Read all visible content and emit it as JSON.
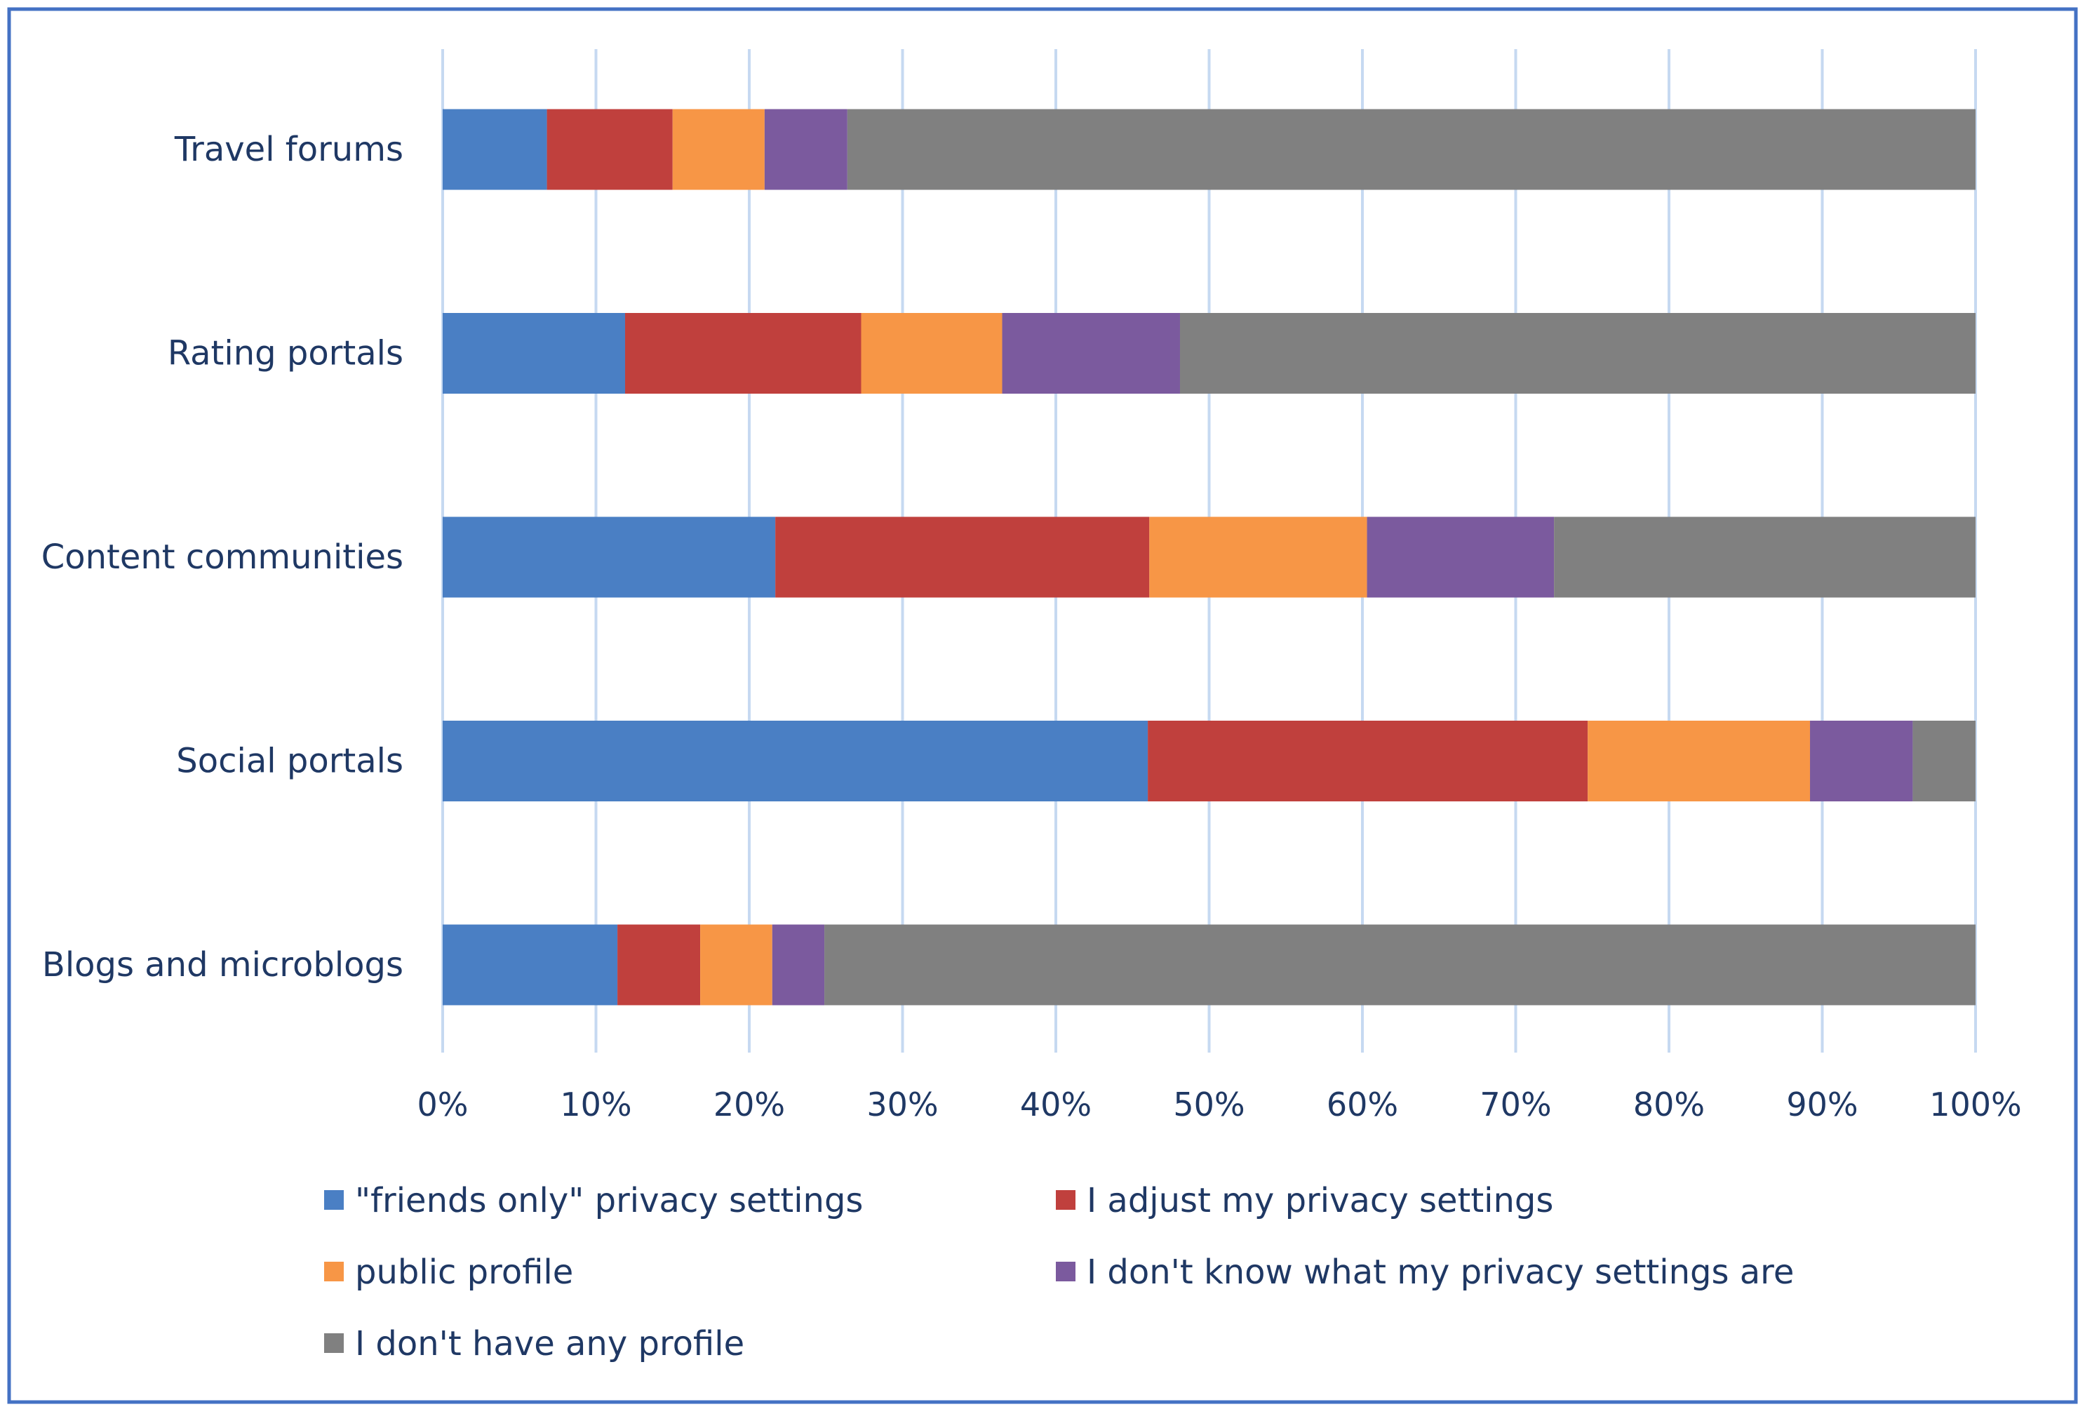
{
  "chart_data": {
    "type": "bar",
    "orientation": "horizontal",
    "stacked": "percent",
    "title": "",
    "xlabel": "",
    "ylabel": "",
    "xlim": [
      0,
      100
    ],
    "grid": true,
    "legend_position": "bottom",
    "categories": [
      "Travel forums",
      "Rating portals",
      "Content communities",
      "Social portals",
      "Blogs and microblogs"
    ],
    "x_ticks": [
      "0%",
      "10%",
      "20%",
      "30%",
      "40%",
      "50%",
      "60%",
      "70%",
      "80%",
      "90%",
      "100%"
    ],
    "series": [
      {
        "name": "\"friends only\" privacy settings",
        "color": "#4a7fc4",
        "values": [
          6.8,
          11.9,
          21.7,
          46.0,
          11.4
        ]
      },
      {
        "name": "I adjust my privacy settings",
        "color": "#c0403d",
        "values": [
          8.2,
          15.4,
          24.4,
          28.7,
          5.4
        ]
      },
      {
        "name": "public profile",
        "color": "#f79646",
        "values": [
          6.0,
          9.2,
          14.2,
          14.5,
          4.7
        ]
      },
      {
        "name": "I don't know what my privacy settings are",
        "color": "#7b5a9e",
        "values": [
          5.4,
          11.6,
          12.2,
          6.7,
          3.4
        ]
      },
      {
        "name": "I don't have any profile",
        "color": "#808080",
        "values": [
          73.6,
          51.9,
          27.5,
          4.1,
          75.1
        ]
      }
    ]
  },
  "colors": {
    "frame": "#4472c4",
    "grid": "#c6d9f1",
    "text": "#1f3864"
  }
}
